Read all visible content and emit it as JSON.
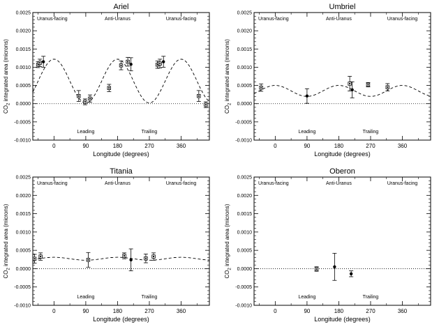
{
  "figure": {
    "panel_titles": [
      "Ariel",
      "Umbriel",
      "Titania",
      "Oberon"
    ],
    "xlabel": "Longitude (degrees)",
    "ylabel_main": "CO",
    "ylabel_sub": "2",
    "ylabel_rest": " integrated area (microns)"
  },
  "chart_data": [
    {
      "type": "scatter",
      "title": "Ariel",
      "xlabel": "Longitude (degrees)",
      "ylabel": "CO2 integrated area (microns)",
      "xlim": [
        -60,
        440
      ],
      "ylim": [
        -0.001,
        0.0025
      ],
      "xticks": [
        0,
        90,
        180,
        270,
        360
      ],
      "yticks": [
        -0.001,
        -0.0005,
        0.0,
        0.0005,
        0.001,
        0.0015,
        0.002,
        0.0025
      ],
      "ytick_labels": [
        "-0.0010",
        "-0.0005",
        "0.0000",
        "0.0005",
        "0.0010",
        "0.0015",
        "0.0020",
        "0.0025"
      ],
      "top_labels": [
        {
          "text": "Uranus-facing",
          "x": -5
        },
        {
          "text": "Anti-Uranus",
          "x": 180
        },
        {
          "text": "Uranus-facing",
          "x": 360
        }
      ],
      "bottom_labels": [
        {
          "text": "Leading",
          "x": 90
        },
        {
          "text": "Trailing",
          "x": 270
        }
      ],
      "zero_line": true,
      "model": {
        "amplitude": 0.0006,
        "offset": 0.00062,
        "phase_deg": 0
      },
      "points": [
        {
          "x": -45,
          "y": 0.00107,
          "err": 8e-05,
          "marker": "square"
        },
        {
          "x": -40,
          "y": 0.00112,
          "err": 0.0001,
          "marker": "square"
        },
        {
          "x": -30,
          "y": 0.00115,
          "err": 0.00015,
          "marker": "circle"
        },
        {
          "x": 70,
          "y": 0.00021,
          "err": 0.00015,
          "marker": "square"
        },
        {
          "x": 88,
          "y": 5e-05,
          "err": 8e-05,
          "marker": "square"
        },
        {
          "x": 102,
          "y": 0.00014,
          "err": 0.0001,
          "marker": "square"
        },
        {
          "x": 156,
          "y": 0.00043,
          "err": 0.0001,
          "marker": "square"
        },
        {
          "x": 190,
          "y": 0.00105,
          "err": 0.00012,
          "marker": "square"
        },
        {
          "x": 209,
          "y": 0.00115,
          "err": 0.00012,
          "marker": "square"
        },
        {
          "x": 218,
          "y": 0.00108,
          "err": 0.00018,
          "marker": "circle"
        },
        {
          "x": 293,
          "y": 0.00107,
          "err": 0.0001,
          "marker": "square"
        },
        {
          "x": 300,
          "y": 0.0011,
          "err": 0.00012,
          "marker": "square"
        },
        {
          "x": 310,
          "y": 0.00115,
          "err": 0.00015,
          "marker": "circle"
        },
        {
          "x": 410,
          "y": 0.00021,
          "err": 0.00015,
          "marker": "square"
        },
        {
          "x": 430,
          "y": -3e-05,
          "err": 8e-05,
          "marker": "square"
        }
      ]
    },
    {
      "type": "scatter",
      "title": "Umbriel",
      "xlabel": "Longitude (degrees)",
      "ylabel": "CO2 integrated area (microns)",
      "xlim": [
        -60,
        440
      ],
      "ylim": [
        -0.001,
        0.0025
      ],
      "xticks": [
        0,
        90,
        180,
        270,
        360
      ],
      "yticks": [
        -0.001,
        -0.0005,
        0.0,
        0.0005,
        0.001,
        0.0015,
        0.002,
        0.0025
      ],
      "ytick_labels": [
        "-0.0010",
        "-0.0005",
        "0.0000",
        "0.0005",
        "0.0010",
        "0.0015",
        "0.0020",
        "0.0025"
      ],
      "top_labels": [
        {
          "text": "Uranus-facing",
          "x": -5
        },
        {
          "text": "Anti-Uranus",
          "x": 180
        },
        {
          "text": "Uranus-facing",
          "x": 360
        }
      ],
      "bottom_labels": [
        {
          "text": "Leading",
          "x": 90
        },
        {
          "text": "Trailing",
          "x": 270
        }
      ],
      "zero_line": true,
      "model": {
        "amplitude": 0.00015,
        "offset": 0.00035,
        "phase_deg": 0
      },
      "points": [
        {
          "x": -40,
          "y": 0.00044,
          "err": 0.0001,
          "marker": "square"
        },
        {
          "x": 90,
          "y": 0.00021,
          "err": 0.0002,
          "marker": "circle"
        },
        {
          "x": 211,
          "y": 0.00055,
          "err": 0.0002,
          "marker": "square"
        },
        {
          "x": 218,
          "y": 0.00038,
          "err": 0.00022,
          "marker": "circle"
        },
        {
          "x": 263,
          "y": 0.00052,
          "err": 6e-05,
          "marker": "square"
        },
        {
          "x": 318,
          "y": 0.00045,
          "err": 0.0001,
          "marker": "square"
        }
      ]
    },
    {
      "type": "scatter",
      "title": "Titania",
      "xlabel": "Longitude (degrees)",
      "ylabel": "CO2 integrated area (microns)",
      "xlim": [
        -60,
        440
      ],
      "ylim": [
        -0.001,
        0.0025
      ],
      "xticks": [
        0,
        90,
        180,
        270,
        360
      ],
      "yticks": [
        -0.001,
        -0.0005,
        0.0,
        0.0005,
        0.001,
        0.0015,
        0.002,
        0.0025
      ],
      "ytick_labels": [
        "-0.0010",
        "-0.0005",
        "0.0000",
        "0.0005",
        "0.0010",
        "0.0015",
        "0.0020",
        "0.0025"
      ],
      "top_labels": [
        {
          "text": "Uranus-facing",
          "x": -5
        },
        {
          "text": "Anti-Uranus",
          "x": 180
        },
        {
          "text": "Uranus-facing",
          "x": 360
        }
      ],
      "bottom_labels": [
        {
          "text": "Leading",
          "x": 90
        },
        {
          "text": "Trailing",
          "x": 270
        }
      ],
      "zero_line": true,
      "model": {
        "amplitude": 4e-05,
        "offset": 0.00027,
        "phase_deg": 0
      },
      "points": [
        {
          "x": -55,
          "y": 0.00027,
          "err": 0.00012,
          "marker": "square"
        },
        {
          "x": -38,
          "y": 0.00033,
          "err": 0.0001,
          "marker": "square"
        },
        {
          "x": 97,
          "y": 0.00024,
          "err": 0.0002,
          "marker": "square"
        },
        {
          "x": 199,
          "y": 0.00035,
          "err": 8e-05,
          "marker": "square"
        },
        {
          "x": 218,
          "y": 0.00024,
          "err": 0.0003,
          "marker": "circle"
        },
        {
          "x": 260,
          "y": 0.00028,
          "err": 0.00012,
          "marker": "square"
        },
        {
          "x": 282,
          "y": 0.00033,
          "err": 0.0001,
          "marker": "square"
        }
      ]
    },
    {
      "type": "scatter",
      "title": "Oberon",
      "xlabel": "Longitude (degrees)",
      "ylabel": "CO2 integrated area (microns)",
      "xlim": [
        -60,
        440
      ],
      "ylim": [
        -0.001,
        0.0025
      ],
      "xticks": [
        0,
        90,
        180,
        270,
        360
      ],
      "yticks": [
        -0.001,
        -0.0005,
        0.0,
        0.0005,
        0.001,
        0.0015,
        0.002,
        0.0025
      ],
      "ytick_labels": [
        "-0.0010",
        "-0.0005",
        "0.0000",
        "0.0005",
        "0.0010",
        "0.0015",
        "0.0020",
        "0.0025"
      ],
      "top_labels": [
        {
          "text": "Uranus-facing",
          "x": -5
        },
        {
          "text": "Anti-Uranus",
          "x": 180
        },
        {
          "text": "Uranus-facing",
          "x": 360
        }
      ],
      "bottom_labels": [
        {
          "text": "Leading",
          "x": 90
        },
        {
          "text": "Trailing",
          "x": 270
        }
      ],
      "zero_line": true,
      "model": null,
      "points": [
        {
          "x": 117,
          "y": -1e-05,
          "err": 6e-05,
          "marker": "square"
        },
        {
          "x": 168,
          "y": 5e-05,
          "err": 0.00037,
          "marker": "circle"
        },
        {
          "x": 215,
          "y": -0.00014,
          "err": 8e-05,
          "marker": "circle"
        }
      ]
    }
  ]
}
